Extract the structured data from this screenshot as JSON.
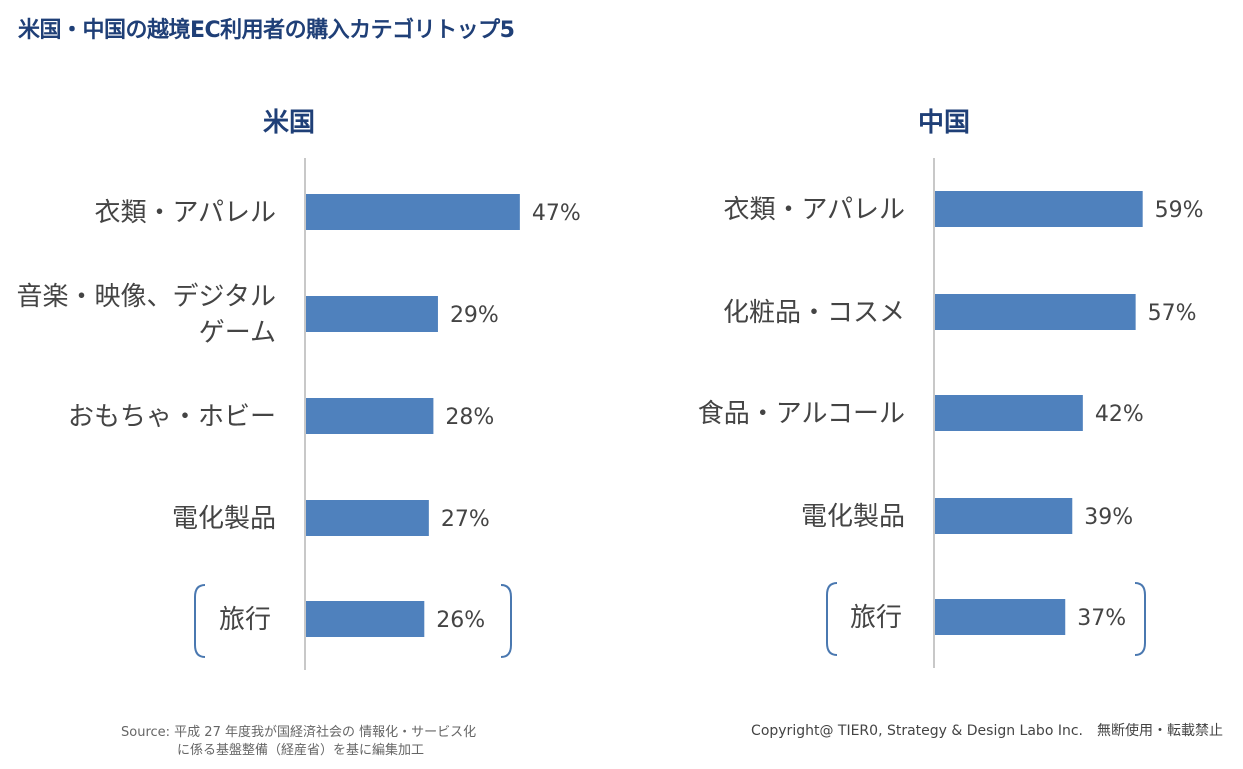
{
  "page_title": "米国・中国の越境EC利用者の購入カテゴリトップ5",
  "source_line1": "Source: 平成 27 年度我が国経済社会の 情報化・サービス化",
  "source_line2": "に係る基盤整備（経産省）を基に編集加工",
  "copyright": "Copyright@ TIER0, Strategy & Design Labo Inc.　無断使用・転載禁止",
  "colors": {
    "bar": "#4f81bd",
    "title": "#1f3f77",
    "bracket": "#4a78b0"
  },
  "chart_data": [
    {
      "type": "bar",
      "orientation": "horizontal",
      "title": "米国",
      "categories": [
        "衣類・アパレル",
        "音楽・映像、デジタルゲーム",
        "おもちゃ・ホビー",
        "電化製品",
        "旅行"
      ],
      "category_lines": [
        [
          "衣類・アパレル"
        ],
        [
          "音楽・映像、デジタル",
          "ゲーム"
        ],
        [
          "おもちゃ・ホビー"
        ],
        [
          "電化製品"
        ],
        [
          "旅行"
        ]
      ],
      "values": [
        47,
        29,
        28,
        27,
        26
      ],
      "value_labels": [
        "47%",
        "29%",
        "28%",
        "27%",
        "26%"
      ],
      "highlighted_category": "旅行",
      "xlim": [
        0,
        100
      ]
    },
    {
      "type": "bar",
      "orientation": "horizontal",
      "title": "中国",
      "categories": [
        "衣類・アパレル",
        "化粧品・コスメ",
        "食品・アルコール",
        "電化製品",
        "旅行"
      ],
      "category_lines": [
        [
          "衣類・アパレル"
        ],
        [
          "化粧品・コスメ"
        ],
        [
          "食品・アルコール"
        ],
        [
          "電化製品"
        ],
        [
          "旅行"
        ]
      ],
      "values": [
        59,
        57,
        42,
        39,
        37
      ],
      "value_labels": [
        "59%",
        "57%",
        "42%",
        "39%",
        "37%"
      ],
      "highlighted_category": "旅行",
      "xlim": [
        0,
        100
      ]
    }
  ]
}
